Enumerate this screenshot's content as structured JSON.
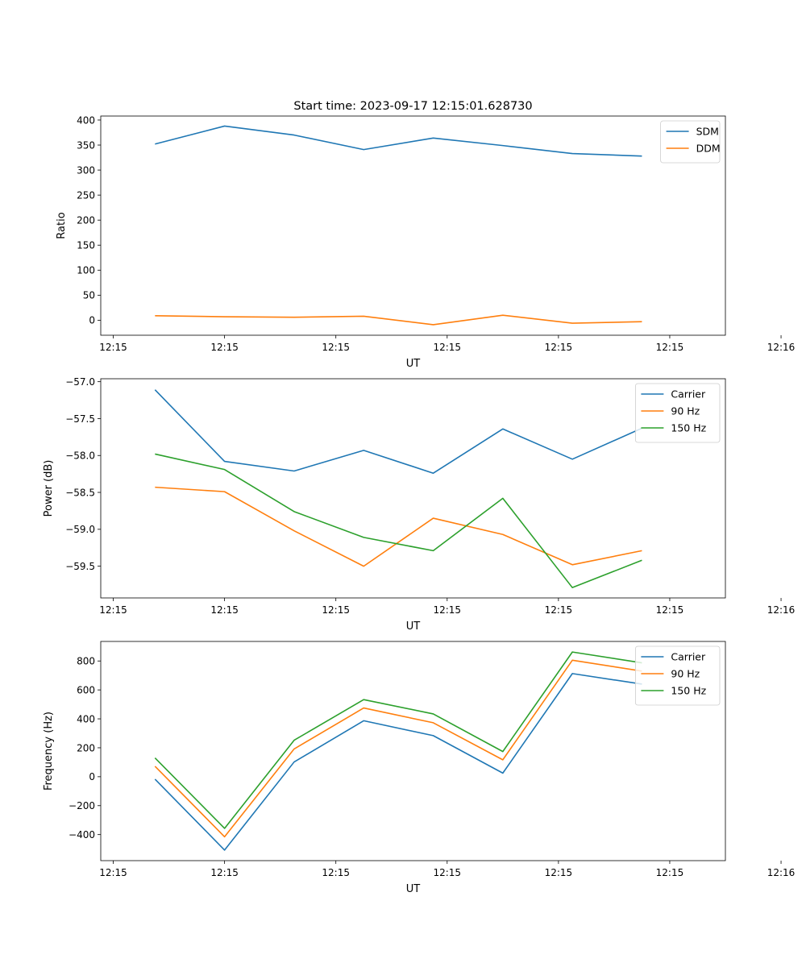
{
  "figure_title": "Start time: 2023-09-17 12:15:01.628730",
  "chart_data": [
    {
      "type": "line",
      "title": "Start time: 2023-09-17 12:15:01.628730",
      "xlabel": "UT",
      "ylabel": "Ratio",
      "x": [
        1,
        2,
        3,
        4,
        5,
        6,
        7,
        8
      ],
      "xlim": [
        0.22,
        9.2
      ],
      "xticks": [
        0.4,
        2.0,
        3.6,
        5.2,
        6.8,
        8.4,
        10.0
      ],
      "xtick_labels": [
        "12:15",
        "12:15",
        "12:15",
        "12:15",
        "12:15",
        "12:15",
        "12:16"
      ],
      "ylim": [
        -30,
        408
      ],
      "yticks": [
        0,
        50,
        100,
        150,
        200,
        250,
        300,
        350,
        400
      ],
      "ytick_labels": [
        "0",
        "50",
        "100",
        "150",
        "200",
        "250",
        "300",
        "350",
        "400"
      ],
      "legend": "top-right",
      "series": [
        {
          "name": "SDM",
          "color": "#1f77b4",
          "values": [
            352,
            388,
            370,
            341,
            364,
            349,
            333,
            328
          ]
        },
        {
          "name": "DDM",
          "color": "#ff7f0e",
          "values": [
            9,
            7,
            6,
            8,
            -9,
            10,
            -6,
            -3
          ]
        }
      ]
    },
    {
      "type": "line",
      "title": "",
      "xlabel": "UT",
      "ylabel": "Power (dB)",
      "x": [
        1,
        2,
        3,
        4,
        5,
        6,
        7,
        8
      ],
      "xlim": [
        0.22,
        9.2
      ],
      "xticks": [
        0.4,
        2.0,
        3.6,
        5.2,
        6.8,
        8.4,
        10.0
      ],
      "xtick_labels": [
        "12:15",
        "12:15",
        "12:15",
        "12:15",
        "12:15",
        "12:15",
        "12:16"
      ],
      "ylim": [
        -59.93,
        -56.96
      ],
      "yticks": [
        -57.0,
        -57.5,
        -58.0,
        -58.5,
        -59.0,
        -59.5
      ],
      "ytick_labels": [
        "−57.0",
        "−57.5",
        "−58.0",
        "−58.5",
        "−59.0",
        "−59.5"
      ],
      "legend": "top-right",
      "series": [
        {
          "name": "Carrier",
          "color": "#1f77b4",
          "values": [
            -57.11,
            -58.08,
            -58.21,
            -57.93,
            -58.24,
            -57.64,
            -58.05,
            -57.63
          ]
        },
        {
          "name": "90 Hz",
          "color": "#ff7f0e",
          "values": [
            -58.43,
            -58.49,
            -59.02,
            -59.5,
            -58.85,
            -59.07,
            -59.48,
            -59.29
          ]
        },
        {
          "name": "150 Hz",
          "color": "#2ca02c",
          "values": [
            -57.98,
            -58.19,
            -58.76,
            -59.11,
            -59.29,
            -58.58,
            -59.79,
            -59.42
          ]
        }
      ]
    },
    {
      "type": "line",
      "title": "",
      "xlabel": "UT",
      "ylabel": "Frequency (Hz)",
      "x": [
        1,
        2,
        3,
        4,
        5,
        6,
        7,
        8
      ],
      "xlim": [
        0.22,
        9.2
      ],
      "xticks": [
        0.4,
        2.0,
        3.6,
        5.2,
        6.8,
        8.4,
        10.0
      ],
      "xtick_labels": [
        "12:15",
        "12:15",
        "12:15",
        "12:15",
        "12:15",
        "12:15",
        "12:16"
      ],
      "ylim": [
        -580,
        935
      ],
      "yticks": [
        -400,
        -200,
        0,
        200,
        400,
        600,
        800
      ],
      "ytick_labels": [
        "−400",
        "−200",
        "0",
        "200",
        "400",
        "600",
        "800"
      ],
      "legend": "top-right",
      "series": [
        {
          "name": "Carrier",
          "color": "#1f77b4",
          "values": [
            -17,
            -507,
            102,
            387,
            284,
            25,
            713,
            640
          ]
        },
        {
          "name": "90 Hz",
          "color": "#ff7f0e",
          "values": [
            72,
            -415,
            192,
            475,
            373,
            117,
            805,
            730
          ]
        },
        {
          "name": "150 Hz",
          "color": "#2ca02c",
          "values": [
            130,
            -357,
            252,
            533,
            434,
            174,
            862,
            787
          ]
        }
      ]
    }
  ]
}
